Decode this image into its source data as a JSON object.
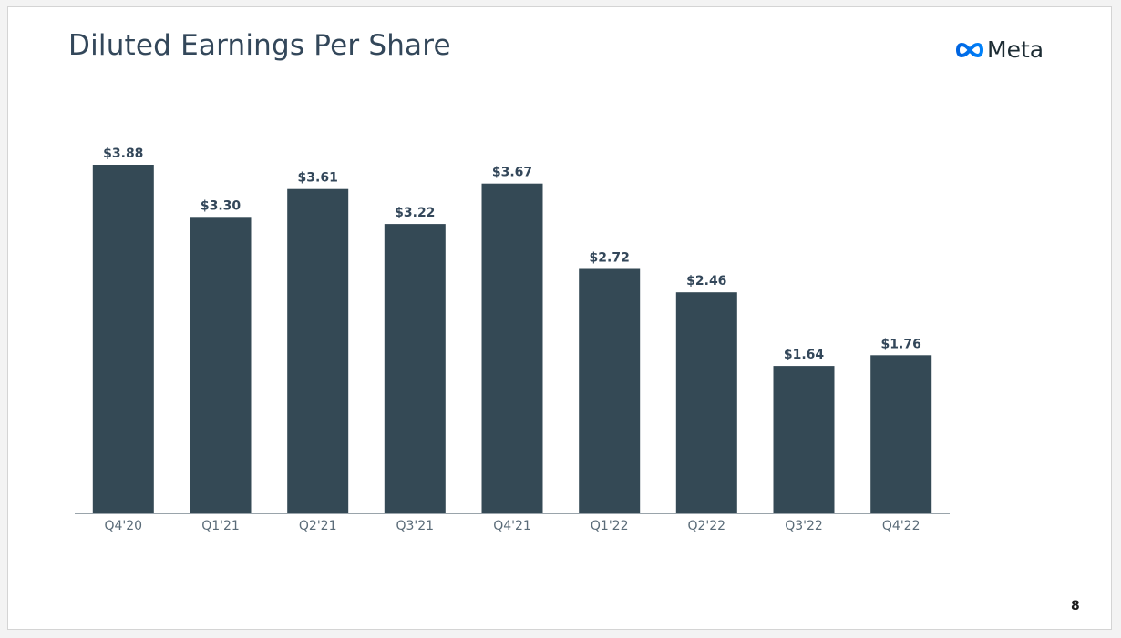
{
  "slide": {
    "title": "Diluted Earnings Per Share",
    "brand": "Meta",
    "page_number": "8"
  },
  "colors": {
    "bar": "#344955",
    "axis": "#9aa4ab",
    "title": "#33475a",
    "logo_gradient": [
      "#0064e0",
      "#0082fb"
    ]
  },
  "chart_data": {
    "type": "bar",
    "title": "Diluted Earnings Per Share",
    "categories": [
      "Q4'20",
      "Q1'21",
      "Q2'21",
      "Q3'21",
      "Q4'21",
      "Q1'22",
      "Q2'22",
      "Q3'22",
      "Q4'22"
    ],
    "values": [
      3.88,
      3.3,
      3.61,
      3.22,
      3.67,
      2.72,
      2.46,
      1.64,
      1.76
    ],
    "value_labels": [
      "$3.88",
      "$3.30",
      "$3.61",
      "$3.22",
      "$3.67",
      "$2.72",
      "$2.46",
      "$1.64",
      "$1.76"
    ],
    "xlabel": "",
    "ylabel": "",
    "ylim": [
      0,
      3.88
    ],
    "grid": false,
    "legend": "none"
  }
}
